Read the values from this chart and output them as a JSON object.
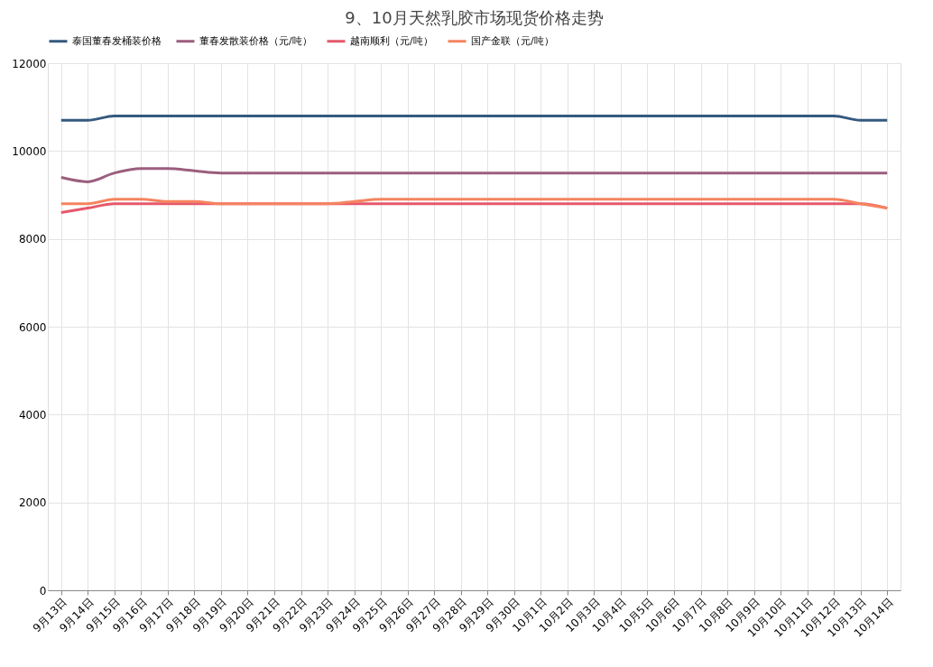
{
  "chart_data": {
    "type": "line",
    "title": "9、10月天然乳胶市场现货价格走势",
    "categories": [
      "9月13日",
      "9月14日",
      "9月15日",
      "9月16日",
      "9月17日",
      "9月18日",
      "9月19日",
      "9月20日",
      "9月21日",
      "9月22日",
      "9月23日",
      "9月24日",
      "9月25日",
      "9月26日",
      "9月27日",
      "9月28日",
      "9月29日",
      "9月30日",
      "10月1日",
      "10月2日",
      "10月3日",
      "10月4日",
      "10月5日",
      "10月6日",
      "10月7日",
      "10月8日",
      "10月9日",
      "10月10日",
      "10月11日",
      "10月12日",
      "10月13日",
      "10月14日"
    ],
    "series": [
      {
        "name": "泰国董春发桶装价格",
        "color": "#34597f",
        "values": [
          10700,
          10700,
          10800,
          10800,
          10800,
          10800,
          10800,
          10800,
          10800,
          10800,
          10800,
          10800,
          10800,
          10800,
          10800,
          10800,
          10800,
          10800,
          10800,
          10800,
          10800,
          10800,
          10800,
          10800,
          10800,
          10800,
          10800,
          10800,
          10800,
          10800,
          10700,
          10700
        ]
      },
      {
        "name": "董春发散装价格（元/吨）",
        "color": "#9b5e7e",
        "values": [
          9400,
          9300,
          9500,
          9600,
          9600,
          9550,
          9500,
          9500,
          9500,
          9500,
          9500,
          9500,
          9500,
          9500,
          9500,
          9500,
          9500,
          9500,
          9500,
          9500,
          9500,
          9500,
          9500,
          9500,
          9500,
          9500,
          9500,
          9500,
          9500,
          9500,
          9500,
          9500
        ]
      },
      {
        "name": "越南顺利（元/吨）",
        "color": "#e5586c",
        "values": [
          8600,
          8700,
          8800,
          8800,
          8800,
          8800,
          8800,
          8800,
          8800,
          8800,
          8800,
          8800,
          8800,
          8800,
          8800,
          8800,
          8800,
          8800,
          8800,
          8800,
          8800,
          8800,
          8800,
          8800,
          8800,
          8800,
          8800,
          8800,
          8800,
          8800,
          8800,
          8700
        ]
      },
      {
        "name": "国产金联（元/吨）",
        "color": "#f5845f",
        "values": [
          8800,
          8800,
          8900,
          8900,
          8850,
          8850,
          8800,
          8800,
          8800,
          8800,
          8800,
          8850,
          8900,
          8900,
          8900,
          8900,
          8900,
          8900,
          8900,
          8900,
          8900,
          8900,
          8900,
          8900,
          8900,
          8900,
          8900,
          8900,
          8900,
          8900,
          8800,
          8700
        ]
      }
    ],
    "ylim": [
      0,
      12000
    ],
    "yticks": [
      0,
      2000,
      4000,
      6000,
      8000,
      10000,
      12000
    ],
    "grid": true,
    "legend": "top",
    "marker": "none",
    "line_style": "solid"
  }
}
